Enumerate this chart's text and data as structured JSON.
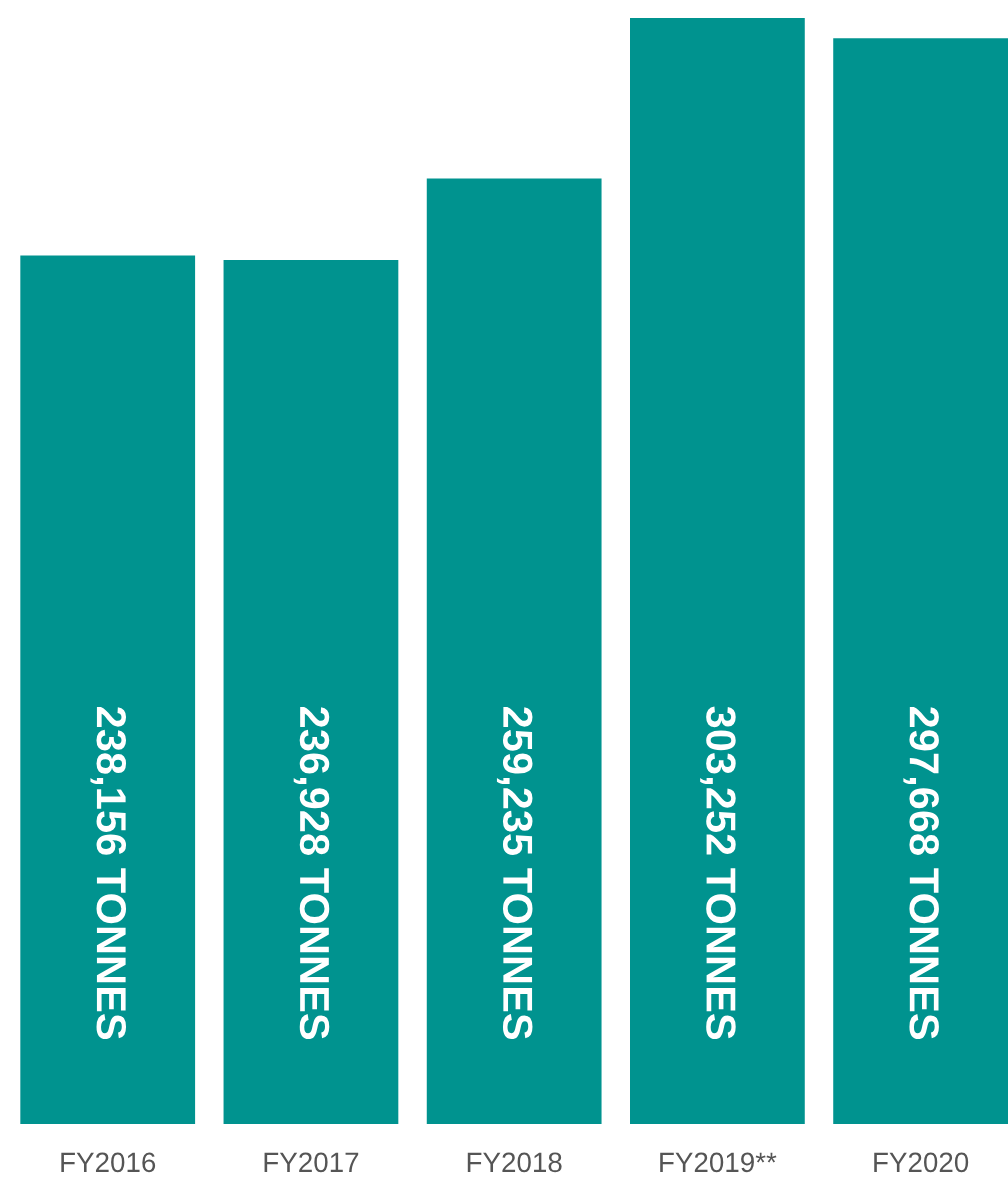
{
  "chart_data": {
    "type": "bar",
    "categories": [
      "FY2016",
      "FY2017",
      "FY2018",
      "FY2019**",
      "FY2020"
    ],
    "values": [
      238156,
      236928,
      259235,
      303252,
      297668
    ],
    "value_labels": [
      "238,156 TONNES",
      "236,928 TONNES",
      "259,235 TONNES",
      "303,252 TONNES",
      "297,668 TONNES"
    ],
    "color": "#00938f",
    "grid": false,
    "legend": false
  }
}
